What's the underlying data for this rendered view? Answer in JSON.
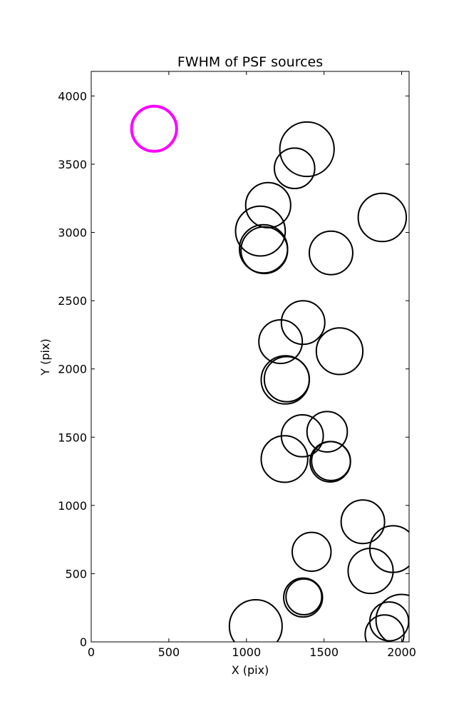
{
  "chart_data": {
    "type": "scatter",
    "title": "FWHM of PSF sources",
    "xlabel": "X (pix)",
    "ylabel": "Y (pix)",
    "xlim": [
      0,
      2048
    ],
    "ylim": [
      0,
      4180
    ],
    "xticks": [
      0,
      500,
      1000,
      1500,
      2000
    ],
    "yticks": [
      0,
      500,
      1000,
      1500,
      2000,
      2500,
      3000,
      3500,
      4000
    ],
    "grid": false,
    "marker": "circle",
    "series": [
      {
        "color": "#000000",
        "points": [
          {
            "x": 1390,
            "y": 3610,
            "r": 175
          },
          {
            "x": 1310,
            "y": 3470,
            "r": 130
          },
          {
            "x": 1140,
            "y": 3200,
            "r": 145
          },
          {
            "x": 1090,
            "y": 3010,
            "r": 160
          },
          {
            "x": 1110,
            "y": 2880,
            "r": 155
          },
          {
            "x": 1115,
            "y": 2870,
            "r": 150
          },
          {
            "x": 1875,
            "y": 3110,
            "r": 155
          },
          {
            "x": 1545,
            "y": 2850,
            "r": 140
          },
          {
            "x": 1365,
            "y": 2340,
            "r": 140
          },
          {
            "x": 1220,
            "y": 2200,
            "r": 140
          },
          {
            "x": 1600,
            "y": 2130,
            "r": 150
          },
          {
            "x": 1250,
            "y": 1920,
            "r": 155
          },
          {
            "x": 1260,
            "y": 1925,
            "r": 145
          },
          {
            "x": 1520,
            "y": 1540,
            "r": 130
          },
          {
            "x": 1360,
            "y": 1510,
            "r": 135
          },
          {
            "x": 1540,
            "y": 1320,
            "r": 130
          },
          {
            "x": 1545,
            "y": 1325,
            "r": 125
          },
          {
            "x": 1245,
            "y": 1340,
            "r": 150
          },
          {
            "x": 1750,
            "y": 880,
            "r": 140
          },
          {
            "x": 1945,
            "y": 680,
            "r": 150
          },
          {
            "x": 1420,
            "y": 660,
            "r": 125
          },
          {
            "x": 1800,
            "y": 520,
            "r": 145
          },
          {
            "x": 1365,
            "y": 325,
            "r": 125
          },
          {
            "x": 1370,
            "y": 330,
            "r": 115
          },
          {
            "x": 1060,
            "y": 115,
            "r": 170
          },
          {
            "x": 2000,
            "y": 160,
            "r": 165
          },
          {
            "x": 1920,
            "y": 150,
            "r": 125
          },
          {
            "x": 1890,
            "y": 55,
            "r": 125
          }
        ]
      },
      {
        "color": "#ff00ff",
        "points": [
          {
            "x": 405,
            "y": 3760,
            "r": 145
          }
        ]
      }
    ]
  }
}
